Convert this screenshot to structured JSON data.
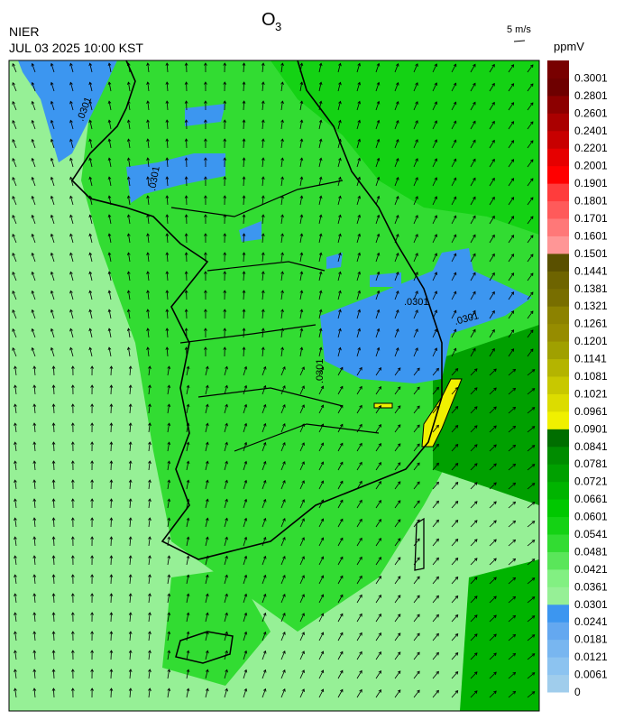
{
  "header": {
    "agency": "NIER",
    "datetime": "JUL 03 2025 10:00 KST",
    "species": "O",
    "species_subscript": "3"
  },
  "wind_reference": {
    "label": "5 m/s"
  },
  "colorbar": {
    "unit": "ppmV",
    "levels": [
      0,
      0.0061,
      0.0121,
      0.0181,
      0.0241,
      0.0301,
      0.0361,
      0.0421,
      0.0481,
      0.0541,
      0.0601,
      0.0661,
      0.0721,
      0.0781,
      0.0841,
      0.0901,
      0.0961,
      0.1021,
      0.1081,
      0.1141,
      0.1201,
      0.1261,
      0.1321,
      0.1381,
      0.1441,
      0.1501,
      0.1601,
      0.1701,
      0.1801,
      0.1901,
      0.2001,
      0.2201,
      0.2401,
      0.2601,
      0.2801,
      0.3001
    ],
    "colors": [
      "#a0cdec",
      "#8cc3f0",
      "#78b6f0",
      "#64a8f0",
      "#3c96f0",
      "#96f096",
      "#82f082",
      "#5ae65a",
      "#32dc32",
      "#14d214",
      "#00c800",
      "#00b400",
      "#00a000",
      "#008c00",
      "#006e00",
      "#f0f000",
      "#dcdc00",
      "#c8c800",
      "#b4b400",
      "#a0a000",
      "#968c00",
      "#8c8200",
      "#786e00",
      "#6e6400",
      "#5a5000",
      "#ff9696",
      "#ff7878",
      "#ff5a5a",
      "#ff3c3c",
      "#ff0000",
      "#e60000",
      "#c80000",
      "#aa0000",
      "#8c0000",
      "#6e0000",
      "#780000"
    ]
  },
  "map": {
    "contour_labels": [
      ".0301",
      ".0301",
      ".0301",
      ".0301",
      ".0301"
    ]
  }
}
